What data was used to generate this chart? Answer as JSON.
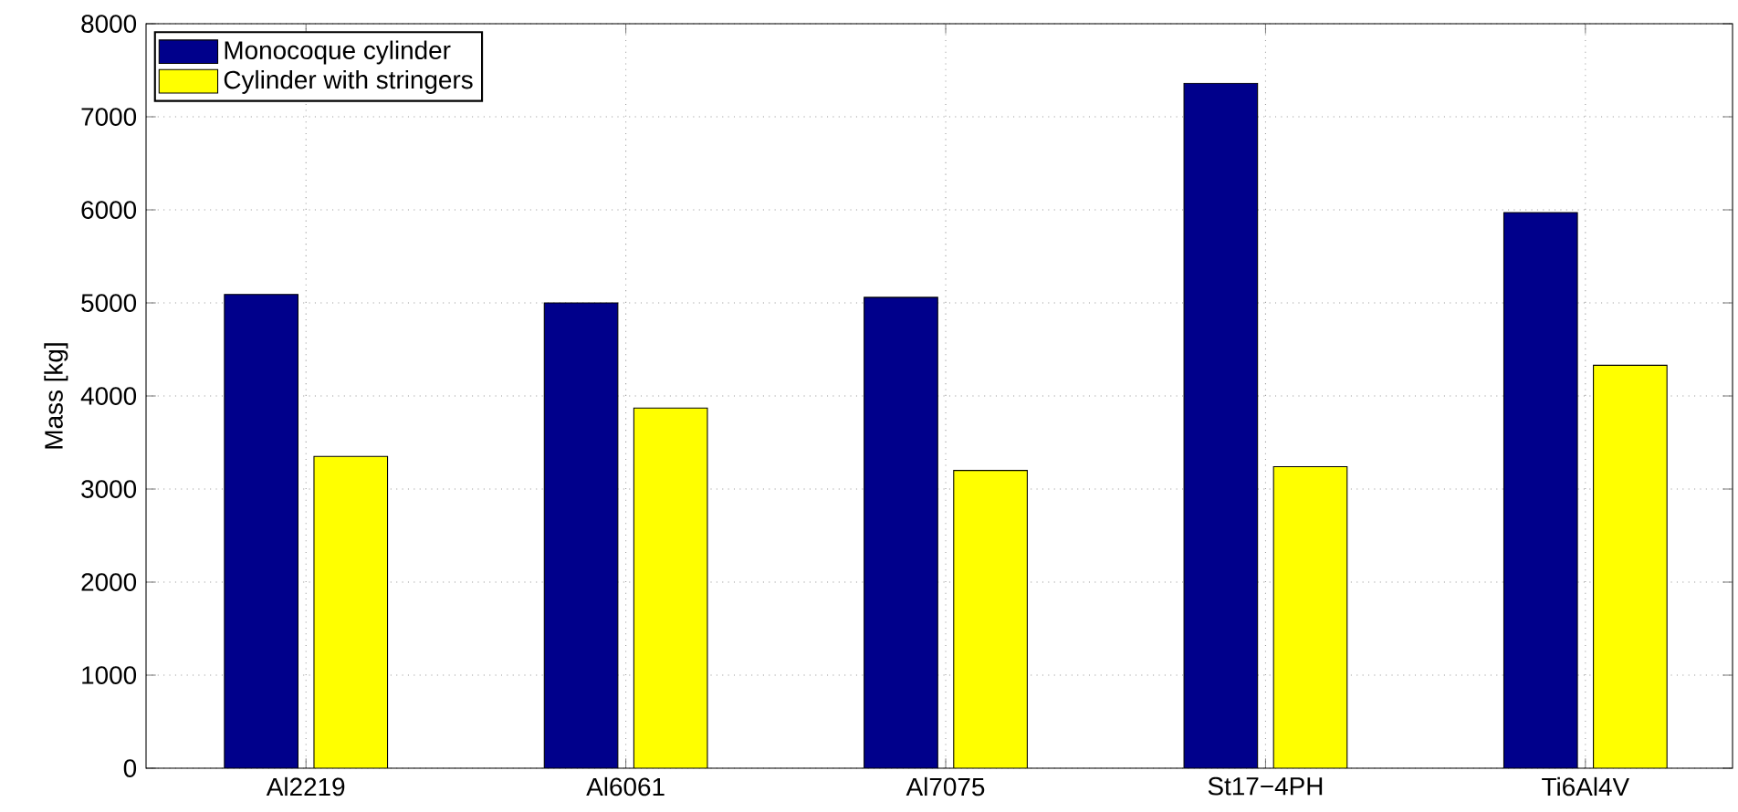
{
  "chart_data": {
    "type": "bar",
    "ylabel": "Mass [kg]",
    "categories": [
      "Al2219",
      "Al6061",
      "Al7075",
      "St17−4PH",
      "Ti6Al4V"
    ],
    "series": [
      {
        "name": "Monocoque cylinder",
        "color": "#00008b",
        "values": [
          5090,
          5000,
          5060,
          7360,
          5970
        ]
      },
      {
        "name": "Cylinder with stringers",
        "color": "#ffff00",
        "values": [
          3350,
          3870,
          3200,
          3240,
          4330
        ]
      }
    ],
    "ylim": [
      0,
      8000
    ],
    "yticks": [
      0,
      1000,
      2000,
      3000,
      4000,
      5000,
      6000,
      7000,
      8000
    ],
    "grid": true,
    "legend": "top left"
  }
}
